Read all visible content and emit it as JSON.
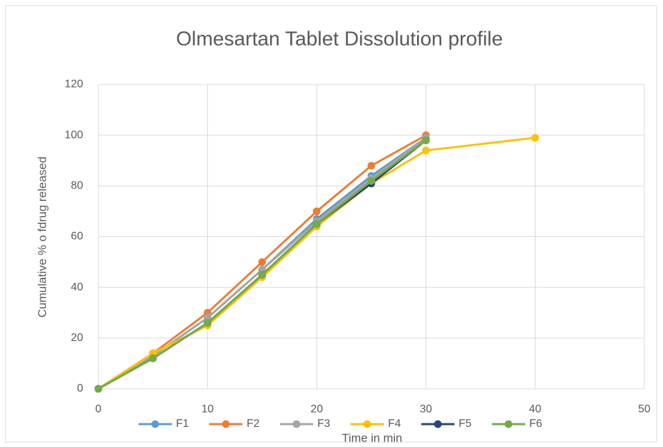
{
  "chart_data": {
    "type": "line",
    "title": "Olmesartan Tablet Dissolution profile",
    "x_label": "Time in min",
    "y_label": "Cumulative %  o fdrug released",
    "x": [
      0,
      5,
      10,
      15,
      20,
      25,
      30,
      40
    ],
    "series": [
      {
        "name": "F1",
        "color": "#5b9bd5",
        "values": [
          0,
          13,
          28,
          47,
          67,
          84,
          99,
          null
        ]
      },
      {
        "name": "F2",
        "color": "#ed7d31",
        "values": [
          0,
          14,
          30,
          50,
          70,
          88,
          100,
          null
        ]
      },
      {
        "name": "F3",
        "color": "#a5a5a5",
        "values": [
          0,
          13,
          28,
          47,
          66,
          83,
          99,
          null
        ]
      },
      {
        "name": "F4",
        "color": "#ffc000",
        "values": [
          0,
          14,
          25,
          44,
          64,
          81,
          94,
          99
        ]
      },
      {
        "name": "F5",
        "color": "#264478",
        "values": [
          0,
          12,
          26,
          45,
          65,
          81,
          98,
          null
        ]
      },
      {
        "name": "F6",
        "color": "#70ad47",
        "values": [
          0,
          12,
          26,
          45,
          65,
          82,
          98,
          null
        ]
      }
    ],
    "xlim": [
      0,
      50
    ],
    "xticks": [
      0,
      10,
      20,
      30,
      40,
      50
    ],
    "ylim": [
      0,
      120
    ],
    "yticks": [
      0,
      20,
      40,
      60,
      80,
      100,
      120
    ],
    "grid": true,
    "legend": "bottom"
  }
}
